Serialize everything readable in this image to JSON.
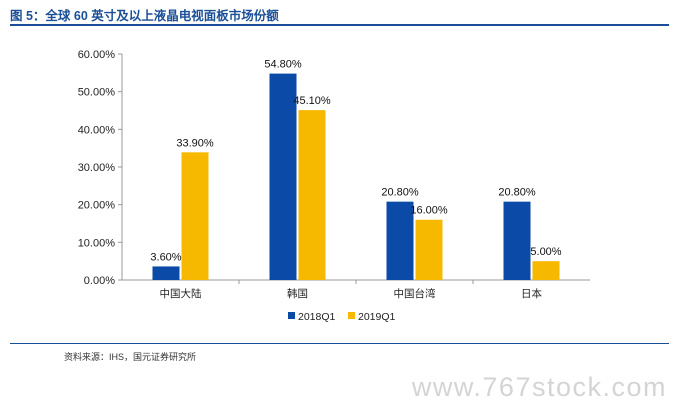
{
  "header": {
    "title": "图 5：全球 60 英寸及以上液晶电视面板市场份额"
  },
  "footer": {
    "source": "资料来源：IHS，国元证券研究所",
    "watermark": "www.767stock.com"
  },
  "chart_data": {
    "type": "bar",
    "title": "",
    "categories": [
      "中国大陆",
      "韩国",
      "中国台湾",
      "日本"
    ],
    "series": [
      {
        "name": "2018Q1",
        "values": [
          3.6,
          54.8,
          20.8,
          20.8
        ],
        "labels": [
          "3.60%",
          "54.80%",
          "20.80%",
          "20.80%"
        ],
        "color": "#0b4aa6"
      },
      {
        "name": "2019Q1",
        "values": [
          33.9,
          45.1,
          16.0,
          5.0
        ],
        "labels": [
          "33.90%",
          "45.10%",
          "16.00%",
          "5.00%"
        ],
        "color": "#f7b800"
      }
    ],
    "y_ticks": [
      "0.00%",
      "10.00%",
      "20.00%",
      "30.00%",
      "40.00%",
      "50.00%",
      "60.00%"
    ],
    "ylim": [
      0,
      60
    ],
    "grid": false,
    "legend": "bottom"
  }
}
